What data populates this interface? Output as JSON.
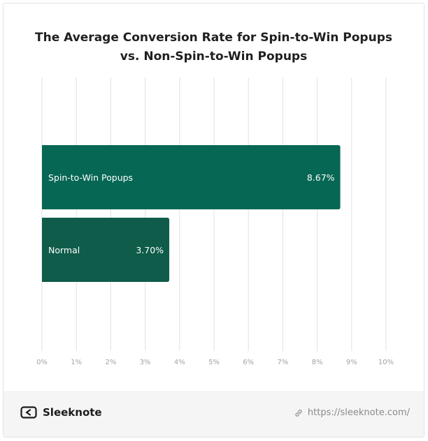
{
  "chart_data": {
    "type": "bar",
    "orientation": "horizontal",
    "title": "The Average Conversion Rate for Spin-to-Win Popups vs. Non-Spin-to-Win Popups",
    "title_lines": [
      "The Average Conversion Rate for Spin-to-Win Popups",
      "vs. Non-Spin-to-Win Popups"
    ],
    "categories": [
      "Spin-to-Win Popups",
      "Normal"
    ],
    "values": [
      8.67,
      3.7
    ],
    "value_labels": [
      "8.67%",
      "3.70%"
    ],
    "bar_colors": [
      "#066754",
      "#0e5c49"
    ],
    "xlim": [
      0,
      10
    ],
    "x_ticks": [
      0,
      1,
      2,
      3,
      4,
      5,
      6,
      7,
      8,
      9,
      10
    ],
    "x_tick_labels": [
      "0%",
      "1%",
      "2%",
      "3%",
      "4%",
      "5%",
      "6%",
      "7%",
      "8%",
      "9%",
      "10%"
    ],
    "xlabel": "",
    "ylabel": "",
    "grid": true
  },
  "footer": {
    "brand": "Sleeknote",
    "url": "https://sleeknote.com/",
    "brand_icon": "sleeknote-logo-icon",
    "url_icon": "link-icon"
  }
}
